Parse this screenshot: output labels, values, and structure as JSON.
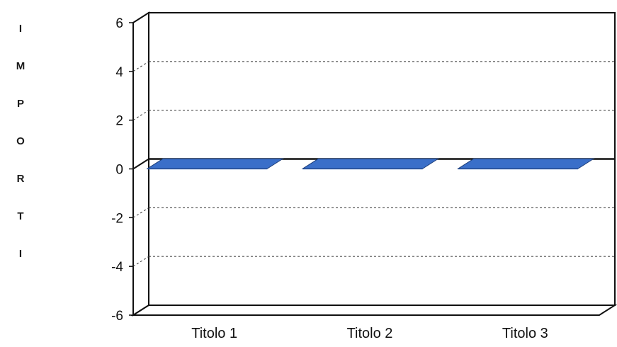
{
  "chart_data": {
    "type": "bar",
    "title": "",
    "xlabel": "",
    "ylabel": "IMPORTI",
    "categories": [
      "Titolo 1",
      "Titolo 2",
      "Titolo 3"
    ],
    "series": [
      {
        "values": [
          0.01,
          0.01,
          0.01
        ],
        "color": "#3a6fc9"
      }
    ],
    "ylim": [
      -6,
      6
    ],
    "yticks": [
      "6",
      "4",
      "2",
      "0",
      "-2",
      "-4",
      "-6"
    ],
    "grid": true,
    "legend": "none",
    "style": "3d"
  }
}
